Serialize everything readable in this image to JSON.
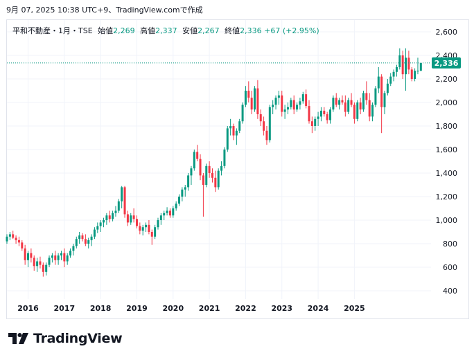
{
  "caption": "9月 07, 2025 10:38 UTC+9、TradingView.comで作成",
  "legend": {
    "symbol": "平和不動産・1月・TSE",
    "open_label": "始値",
    "open": "2,269",
    "high_label": "高値",
    "high": "2,337",
    "low_label": "安値",
    "low": "2,267",
    "close_label": "終値",
    "close": "2,336",
    "change": "+67 (+2.95%)"
  },
  "last_price_label": "2,336",
  "brand": {
    "name": "TradingView",
    "logo_icon": "tradingview-logo-icon"
  },
  "colors": {
    "up": "#089981",
    "down": "#f23645",
    "grid": "#f0f3fa",
    "price_line": "#089981"
  },
  "chart_data": {
    "type": "candlestick",
    "title": "平和不動産・1月・TSE",
    "interval": "monthly",
    "xlabel": "",
    "ylabel": "",
    "ylim": [
      300,
      2650
    ],
    "y_ticks": [
      "2,600",
      "2,400",
      "2,200",
      "2,000",
      "1,800",
      "1,600",
      "1,400",
      "1,200",
      "1,000",
      "800",
      "600",
      "400"
    ],
    "x_ticks": [
      "2016",
      "2017",
      "2018",
      "2019",
      "2020",
      "2021",
      "2022",
      "2023",
      "2024",
      "2025"
    ],
    "grid": true,
    "last_price": 2336,
    "start": "2015-06",
    "ohlc": [
      [
        820,
        880,
        800,
        860
      ],
      [
        860,
        900,
        830,
        880
      ],
      [
        880,
        910,
        840,
        850
      ],
      [
        850,
        870,
        800,
        830
      ],
      [
        830,
        860,
        780,
        810
      ],
      [
        810,
        830,
        740,
        760
      ],
      [
        760,
        790,
        620,
        660
      ],
      [
        660,
        740,
        600,
        720
      ],
      [
        720,
        760,
        640,
        680
      ],
      [
        680,
        700,
        570,
        610
      ],
      [
        610,
        680,
        560,
        650
      ],
      [
        650,
        690,
        590,
        620
      ],
      [
        620,
        640,
        520,
        560
      ],
      [
        560,
        640,
        530,
        620
      ],
      [
        620,
        700,
        600,
        680
      ],
      [
        680,
        720,
        640,
        700
      ],
      [
        700,
        740,
        620,
        660
      ],
      [
        660,
        720,
        620,
        700
      ],
      [
        700,
        740,
        660,
        720
      ],
      [
        720,
        760,
        600,
        650
      ],
      [
        650,
        720,
        620,
        700
      ],
      [
        700,
        760,
        680,
        740
      ],
      [
        740,
        800,
        700,
        780
      ],
      [
        780,
        860,
        760,
        840
      ],
      [
        840,
        900,
        800,
        870
      ],
      [
        870,
        890,
        820,
        840
      ],
      [
        840,
        880,
        780,
        800
      ],
      [
        800,
        850,
        760,
        830
      ],
      [
        830,
        880,
        780,
        860
      ],
      [
        860,
        940,
        840,
        920
      ],
      [
        920,
        980,
        890,
        950
      ],
      [
        950,
        1000,
        900,
        980
      ],
      [
        980,
        1020,
        940,
        1000
      ],
      [
        1000,
        1060,
        960,
        1040
      ],
      [
        1040,
        1080,
        980,
        1010
      ],
      [
        1010,
        1080,
        990,
        1060
      ],
      [
        1060,
        1120,
        1030,
        1080
      ],
      [
        1080,
        1180,
        1060,
        1160
      ],
      [
        1160,
        1290,
        1100,
        1280
      ],
      [
        1280,
        1290,
        1020,
        1050
      ],
      [
        1050,
        1080,
        950,
        980
      ],
      [
        980,
        1060,
        960,
        1040
      ],
      [
        1040,
        1100,
        980,
        1010
      ],
      [
        1010,
        1040,
        930,
        950
      ],
      [
        950,
        980,
        880,
        910
      ],
      [
        910,
        960,
        870,
        940
      ],
      [
        940,
        980,
        900,
        960
      ],
      [
        960,
        1000,
        880,
        900
      ],
      [
        900,
        920,
        790,
        860
      ],
      [
        860,
        960,
        840,
        940
      ],
      [
        940,
        1020,
        920,
        1000
      ],
      [
        1000,
        1060,
        960,
        1040
      ],
      [
        1040,
        1080,
        1000,
        1060
      ],
      [
        1060,
        1110,
        1040,
        1080
      ],
      [
        1080,
        1100,
        1020,
        1040
      ],
      [
        1040,
        1120,
        1020,
        1100
      ],
      [
        1100,
        1160,
        1080,
        1140
      ],
      [
        1140,
        1220,
        1120,
        1200
      ],
      [
        1200,
        1280,
        1160,
        1260
      ],
      [
        1260,
        1300,
        1200,
        1280
      ],
      [
        1280,
        1400,
        1250,
        1380
      ],
      [
        1380,
        1460,
        1300,
        1440
      ],
      [
        1440,
        1600,
        1420,
        1580
      ],
      [
        1580,
        1640,
        1500,
        1520
      ],
      [
        1520,
        1560,
        1340,
        1380
      ],
      [
        1380,
        1400,
        1030,
        1300
      ],
      [
        1300,
        1480,
        1280,
        1460
      ],
      [
        1460,
        1500,
        1360,
        1400
      ],
      [
        1400,
        1440,
        1320,
        1360
      ],
      [
        1360,
        1420,
        1240,
        1280
      ],
      [
        1280,
        1440,
        1260,
        1420
      ],
      [
        1420,
        1500,
        1380,
        1460
      ],
      [
        1460,
        1620,
        1440,
        1600
      ],
      [
        1600,
        1800,
        1580,
        1780
      ],
      [
        1780,
        1860,
        1720,
        1800
      ],
      [
        1800,
        1820,
        1680,
        1720
      ],
      [
        1720,
        1780,
        1640,
        1760
      ],
      [
        1760,
        1860,
        1740,
        1840
      ],
      [
        1840,
        2000,
        1820,
        1980
      ],
      [
        1980,
        2140,
        1960,
        2100
      ],
      [
        2100,
        2180,
        2000,
        2040
      ],
      [
        2040,
        2100,
        1900,
        1940
      ],
      [
        1940,
        2140,
        1920,
        2120
      ],
      [
        2120,
        2190,
        1860,
        1900
      ],
      [
        1900,
        1940,
        1800,
        1840
      ],
      [
        1840,
        1880,
        1720,
        1760
      ],
      [
        1760,
        1800,
        1640,
        1680
      ],
      [
        1680,
        1980,
        1660,
        1960
      ],
      [
        1960,
        2020,
        1900,
        1980
      ],
      [
        1980,
        2060,
        1940,
        2040
      ],
      [
        2040,
        2100,
        1980,
        2060
      ],
      [
        2060,
        2100,
        1880,
        1920
      ],
      [
        1920,
        1980,
        1860,
        1940
      ],
      [
        1940,
        2000,
        1900,
        1960
      ],
      [
        1960,
        2040,
        1940,
        2020
      ],
      [
        2020,
        2060,
        1900,
        1940
      ],
      [
        1940,
        2000,
        1920,
        1980
      ],
      [
        1980,
        2040,
        1940,
        2010
      ],
      [
        2010,
        2090,
        1990,
        2070
      ],
      [
        2070,
        2110,
        1950,
        1970
      ],
      [
        1970,
        2020,
        1820,
        1840
      ],
      [
        1840,
        1880,
        1740,
        1800
      ],
      [
        1800,
        1880,
        1760,
        1860
      ],
      [
        1860,
        1920,
        1800,
        1880
      ],
      [
        1880,
        1960,
        1840,
        1930
      ],
      [
        1930,
        1960,
        1880,
        1900
      ],
      [
        1900,
        1920,
        1820,
        1850
      ],
      [
        1850,
        1960,
        1820,
        1940
      ],
      [
        1940,
        2060,
        1920,
        2040
      ],
      [
        2040,
        2080,
        1960,
        1980
      ],
      [
        1980,
        2040,
        1940,
        2020
      ],
      [
        2020,
        2060,
        1980,
        2000
      ],
      [
        2000,
        2060,
        1880,
        1920
      ],
      [
        1920,
        2040,
        1900,
        2020
      ],
      [
        2020,
        2080,
        1960,
        1980
      ],
      [
        1980,
        2000,
        1820,
        1860
      ],
      [
        1860,
        2020,
        1840,
        2000
      ],
      [
        2000,
        2040,
        1900,
        1940
      ],
      [
        1940,
        2100,
        1920,
        2080
      ],
      [
        2080,
        2180,
        1980,
        2020
      ],
      [
        2020,
        2080,
        1840,
        1880
      ],
      [
        1880,
        2000,
        1840,
        1980
      ],
      [
        1980,
        2140,
        1960,
        2120
      ],
      [
        2120,
        2300,
        2080,
        2220
      ],
      [
        2220,
        2240,
        1740,
        1960
      ],
      [
        1960,
        2100,
        1900,
        2080
      ],
      [
        2080,
        2200,
        2060,
        2160
      ],
      [
        2160,
        2250,
        2140,
        2220
      ],
      [
        2220,
        2280,
        2180,
        2260
      ],
      [
        2260,
        2320,
        2220,
        2300
      ],
      [
        2300,
        2460,
        2280,
        2400
      ],
      [
        2400,
        2440,
        2200,
        2240
      ],
      [
        2240,
        2460,
        2100,
        2380
      ],
      [
        2380,
        2440,
        2240,
        2280
      ],
      [
        2280,
        2300,
        2180,
        2200
      ],
      [
        2200,
        2290,
        2180,
        2269
      ],
      [
        2269,
        2380,
        2240,
        2269
      ],
      [
        2269,
        2337,
        2267,
        2336
      ]
    ]
  }
}
